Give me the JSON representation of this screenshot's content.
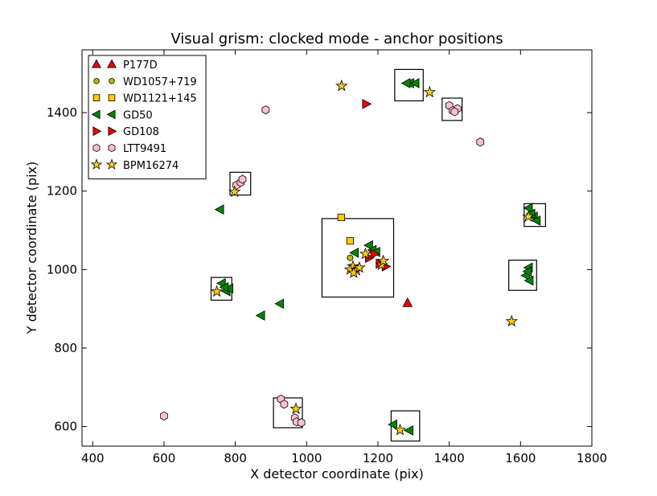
{
  "chart_data": {
    "type": "scatter",
    "title": "Visual grism: clocked mode - anchor positions",
    "xlabel": "X detector coordinate (pix)",
    "ylabel": "Y detector coordinate (pix)",
    "xlim": [
      370,
      1800
    ],
    "ylim": [
      550,
      1560
    ],
    "xticks": [
      400,
      600,
      800,
      1000,
      1200,
      1400,
      1600,
      1800
    ],
    "yticks": [
      600,
      800,
      1000,
      1200,
      1400
    ],
    "grid": false,
    "legend_position": "top-left",
    "boxes": [
      {
        "x0": 1043,
        "x1": 1244,
        "y0": 930,
        "y1": 1130
      },
      {
        "x0": 1247,
        "x1": 1327,
        "y0": 1430,
        "y1": 1510
      },
      {
        "x0": 1380,
        "x1": 1436,
        "y0": 1380,
        "y1": 1437
      },
      {
        "x0": 1610,
        "x1": 1670,
        "y0": 1110,
        "y1": 1168
      },
      {
        "x0": 1567,
        "x1": 1645,
        "y0": 947,
        "y1": 1024
      },
      {
        "x0": 732,
        "x1": 790,
        "y0": 922,
        "y1": 980
      },
      {
        "x0": 785,
        "x1": 843,
        "y0": 1190,
        "y1": 1248
      },
      {
        "x0": 907,
        "x1": 988,
        "y0": 597,
        "y1": 673
      },
      {
        "x0": 1237,
        "x1": 1317,
        "y0": 563,
        "y1": 640
      }
    ],
    "series": [
      {
        "name": "P177D",
        "marker": "triangle-up",
        "color": "#ee0000",
        "points": [
          [
            1283,
            915
          ]
        ]
      },
      {
        "name": "WD1057+719",
        "marker": "circle",
        "color": "#bbbb00",
        "points": [
          [
            1122,
            1030
          ]
        ]
      },
      {
        "name": "WD1121+145",
        "marker": "square",
        "color": "#ffcc00",
        "points": [
          [
            1097,
            1133
          ],
          [
            1122,
            1073
          ]
        ]
      },
      {
        "name": "GD50",
        "marker": "triangle-left",
        "color": "#008800",
        "points": [
          [
            1290,
            1475
          ],
          [
            1305,
            1475
          ],
          [
            1280,
            1475
          ],
          [
            1623,
            1157
          ],
          [
            1637,
            1135
          ],
          [
            1645,
            1125
          ],
          [
            1630,
            1142
          ],
          [
            1623,
            1005
          ],
          [
            1615,
            985
          ],
          [
            1625,
            972
          ],
          [
            1620,
            995
          ],
          [
            762,
            965
          ],
          [
            775,
            945
          ],
          [
            783,
            952
          ],
          [
            770,
            955
          ],
          [
            757,
            1153
          ],
          [
            925,
            913
          ],
          [
            872,
            883
          ],
          [
            1175,
            1062
          ],
          [
            1185,
            1050
          ],
          [
            1195,
            1045
          ],
          [
            1135,
            1043
          ],
          [
            1243,
            605
          ],
          [
            1288,
            590
          ]
        ]
      },
      {
        "name": "GD108",
        "marker": "triangle-right",
        "color": "#ee0000",
        "points": [
          [
            1167,
            1422
          ],
          [
            1175,
            1030
          ],
          [
            1190,
            1040
          ],
          [
            1222,
            1008
          ],
          [
            1205,
            1015
          ]
        ]
      },
      {
        "name": "LTT9491",
        "marker": "hexagon",
        "color": "#ffc0cb",
        "points": [
          [
            885,
            1407
          ],
          [
            1487,
            1325
          ],
          [
            1400,
            1418
          ],
          [
            1410,
            1405
          ],
          [
            1423,
            1410
          ],
          [
            1415,
            1402
          ],
          [
            803,
            1215
          ],
          [
            815,
            1222
          ],
          [
            820,
            1230
          ],
          [
            600,
            627
          ],
          [
            928,
            670
          ],
          [
            937,
            657
          ],
          [
            967,
            622
          ],
          [
            972,
            612
          ],
          [
            985,
            610
          ]
        ]
      },
      {
        "name": "BPM16274",
        "marker": "star",
        "color": "#ffcc11",
        "points": [
          [
            1098,
            1468
          ],
          [
            1345,
            1452
          ],
          [
            798,
            1198
          ],
          [
            1622,
            1135
          ],
          [
            1575,
            868
          ],
          [
            748,
            944
          ],
          [
            970,
            645
          ],
          [
            1262,
            591
          ],
          [
            1130,
            1008
          ],
          [
            1122,
            1000
          ],
          [
            1140,
            998
          ],
          [
            1132,
            992
          ],
          [
            1148,
            1005
          ],
          [
            1165,
            1040
          ],
          [
            1210,
            1012
          ],
          [
            1215,
            1022
          ]
        ]
      }
    ]
  }
}
